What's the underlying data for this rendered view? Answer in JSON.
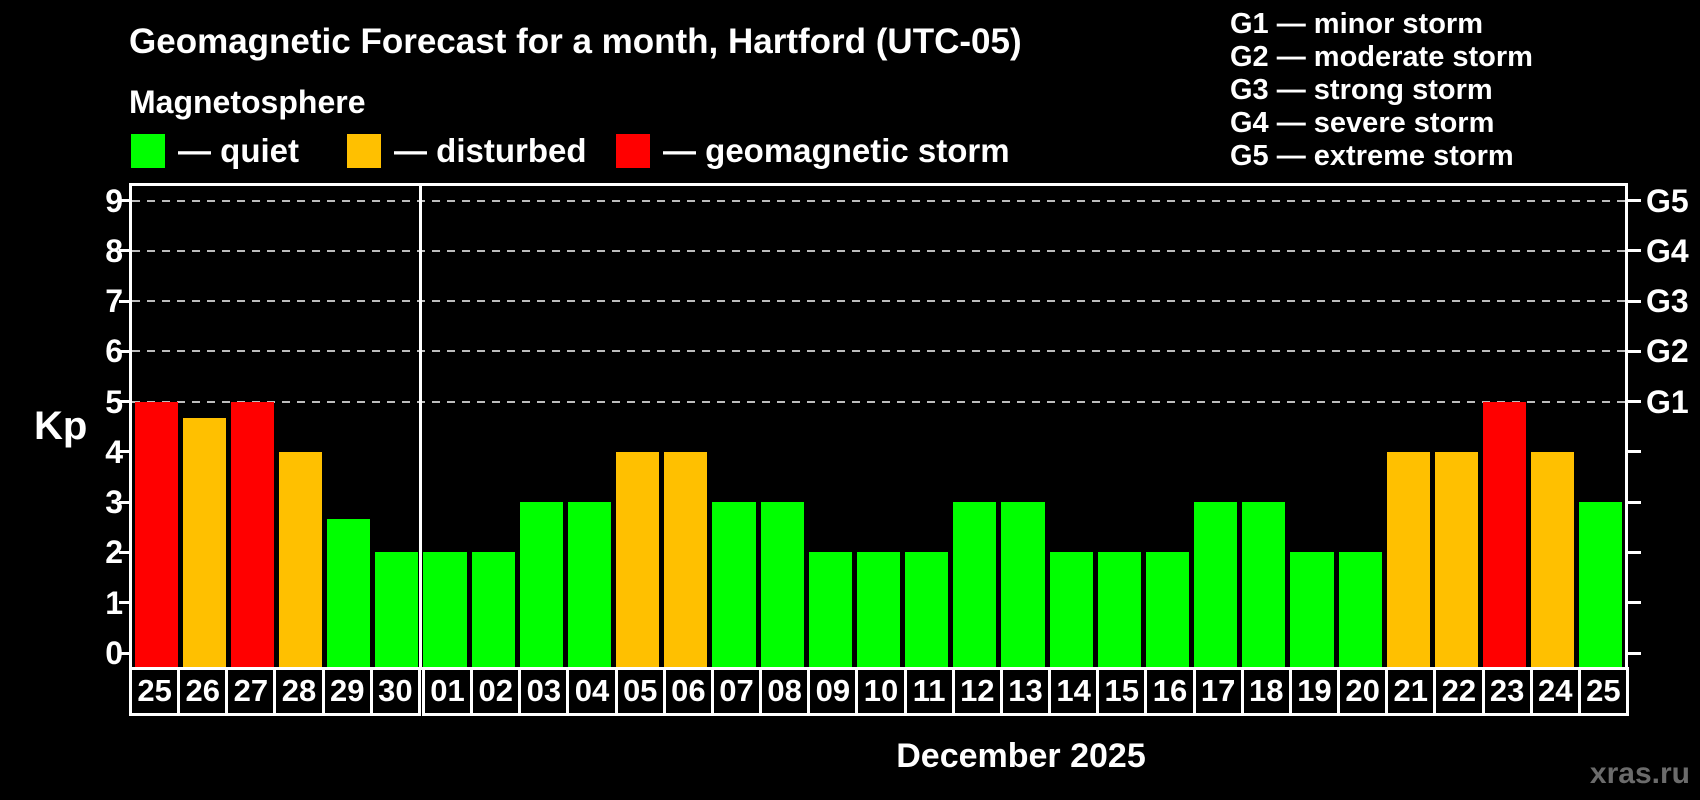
{
  "header": {
    "title": "Geomagnetic Forecast for a month, Hartford (UTC-05)",
    "subtitle": "Magnetosphere"
  },
  "legend": {
    "items": [
      {
        "name": "quiet",
        "label": "— quiet",
        "color": "#00ff00"
      },
      {
        "name": "disturbed",
        "label": "— disturbed",
        "color": "#ffc000"
      },
      {
        "name": "storm",
        "label": "— geomagnetic storm",
        "color": "#ff0000"
      }
    ]
  },
  "g_legend": [
    "G1 — minor storm",
    "G2 — moderate storm",
    "G3 — strong storm",
    "G4 — severe storm",
    "G5 — extreme storm"
  ],
  "axis": {
    "kp_label": "Kp",
    "x_title": "December 2025"
  },
  "watermark": "xras.ru",
  "chart_data": {
    "type": "bar",
    "title": "Geomagnetic Forecast for a month, Hartford (UTC-05)",
    "subtitle": "Magnetosphere",
    "xlabel": "December 2025",
    "ylabel": "Kp",
    "ylim": [
      -0.28,
      9.3
    ],
    "y_ticks": [
      0,
      1,
      2,
      3,
      4,
      5,
      6,
      7,
      8,
      9
    ],
    "grid_levels": [
      5,
      6,
      7,
      8,
      9
    ],
    "grid_style": "dashed gray, only at Kp 5-9",
    "right_axis_labels": [
      {
        "kp": 5,
        "label": "G1"
      },
      {
        "kp": 6,
        "label": "G2"
      },
      {
        "kp": 7,
        "label": "G3"
      },
      {
        "kp": 8,
        "label": "G4"
      },
      {
        "kp": 9,
        "label": "G5"
      }
    ],
    "legend_position": "top-left",
    "month_divider_after_index": 5,
    "categories": [
      "25",
      "26",
      "27",
      "28",
      "29",
      "30",
      "01",
      "02",
      "03",
      "04",
      "05",
      "06",
      "07",
      "08",
      "09",
      "10",
      "11",
      "12",
      "13",
      "14",
      "15",
      "16",
      "17",
      "18",
      "19",
      "20",
      "21",
      "22",
      "23",
      "24",
      "25"
    ],
    "values": [
      5,
      4.67,
      5,
      4,
      2.67,
      2,
      2,
      2,
      3,
      3,
      4,
      4,
      3,
      3,
      2,
      2,
      2,
      3,
      3,
      2,
      2,
      2,
      3,
      3,
      2,
      2,
      4,
      4,
      5,
      4,
      3
    ],
    "colors": {
      "quiet": "#00ff00",
      "disturbed": "#ffc000",
      "storm": "#ff0000"
    },
    "thresholds": {
      "storm_min": 5,
      "disturbed_min": 4
    }
  }
}
